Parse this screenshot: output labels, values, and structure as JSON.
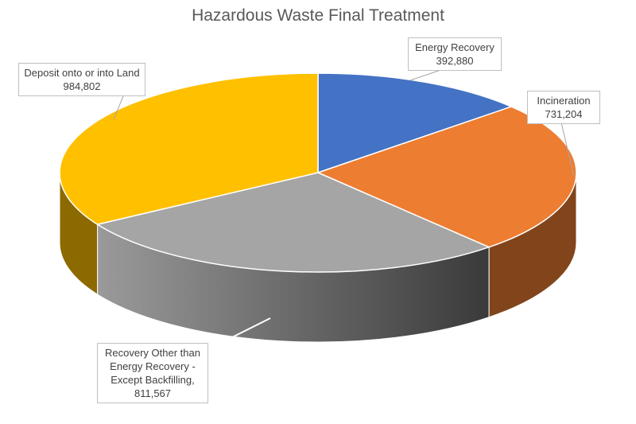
{
  "chart_data": {
    "type": "pie",
    "title": "Hazardous Waste Final Treatment",
    "start_angle_deg": 0,
    "direction": "clockwise",
    "three_d": true,
    "slices": [
      {
        "label": "Energy Recovery",
        "value": 392880,
        "value_text": "392,880",
        "color": "#4472C4"
      },
      {
        "label": "Incineration",
        "value": 731204,
        "value_text": "731,204",
        "color": "#ED7D31"
      },
      {
        "label": "Recovery Other than Energy Recovery - Except Backfilling",
        "label_lines": [
          "Recovery Other than",
          "Energy Recovery -",
          "Except Backfilling,"
        ],
        "value": 811567,
        "value_text": "811,567",
        "color": "#A5A5A5"
      },
      {
        "label": "Deposit onto or into Land",
        "value": 984802,
        "value_text": "984,802",
        "color": "#FFC000"
      }
    ]
  }
}
